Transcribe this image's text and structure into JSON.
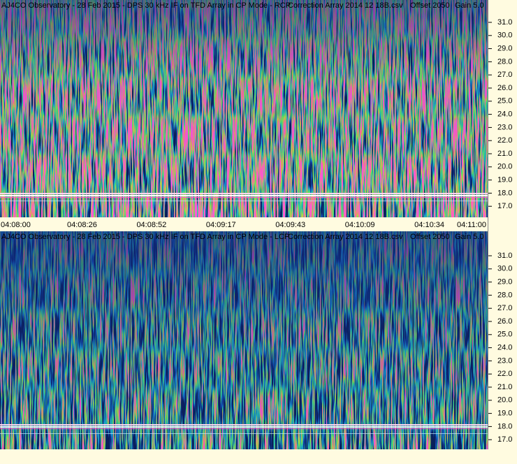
{
  "panels": [
    {
      "title": "AJ4CO Observatory - 28 Feb 2015 - DPS 30 kHz IF on TFD Array in CP Mode - RCP",
      "correction": "Correction Array 2014 12 18B.csv",
      "offset": "Offset 2050",
      "gain": "Gain 5.0",
      "yticks": [
        "31.0",
        "30.0",
        "29.0",
        "28.0",
        "27.0",
        "26.0",
        "25.0",
        "24.0",
        "23.0",
        "22.0",
        "21.0",
        "20.0",
        "19.0",
        "18.0",
        "17.0"
      ]
    },
    {
      "title": "AJ4CO Observatory - 28 Feb 2015 - DPS 30 kHz IF on TFD Array in CP Mode - LCP",
      "correction": "Correction Array 2014 12 18B.csv",
      "offset": "Offset 2050",
      "gain": "Gain 5.0",
      "yticks": [
        "31.0",
        "30.0",
        "29.0",
        "28.0",
        "27.0",
        "26.0",
        "25.0",
        "24.0",
        "23.0",
        "22.0",
        "21.0",
        "20.0",
        "19.0",
        "18.0",
        "17.0"
      ]
    }
  ],
  "time_axis": [
    "04:08:00",
    "04:08:26",
    "04:08:52",
    "04:09:17",
    "04:09:43",
    "04:10:09",
    "04:10:34",
    "04:11:00"
  ]
}
